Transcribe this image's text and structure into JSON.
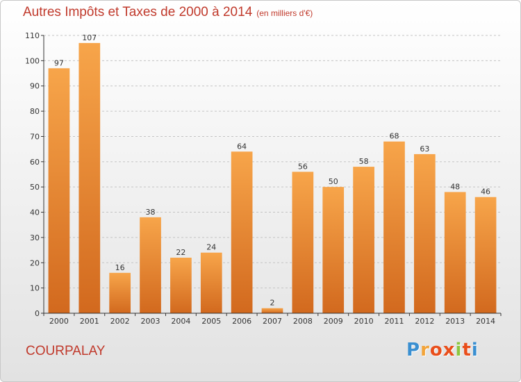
{
  "title": "Autres Impôts et Taxes de 2000 à 2014",
  "subtitle": "(en milliers d'€)",
  "city": "COURPALAY",
  "logo": {
    "letters": [
      "P",
      "r",
      "o",
      "x",
      "i",
      "t",
      "i"
    ],
    "colors": [
      "#3a8fd1",
      "#f2a43a",
      "#e94e1b",
      "#e94e1b",
      "#8cc63f",
      "#e94e1b",
      "#3a8fd1"
    ]
  },
  "colors": {
    "bar_top": "#f7a54a",
    "bar_bottom": "#d2691e",
    "accent": "#c0392b"
  },
  "chart_data": {
    "type": "bar",
    "title": "Autres Impôts et Taxes de 2000 à 2014",
    "subtitle": "(en milliers d'€)",
    "categories": [
      "2000",
      "2001",
      "2002",
      "2003",
      "2004",
      "2005",
      "2006",
      "2007",
      "2008",
      "2009",
      "2010",
      "2011",
      "2012",
      "2013",
      "2014"
    ],
    "values": [
      97,
      107,
      16,
      38,
      22,
      24,
      64,
      2,
      56,
      50,
      58,
      68,
      63,
      48,
      46
    ],
    "value_labels": [
      "97",
      "107",
      "16",
      "38",
      "22",
      "24",
      "64",
      "2",
      "56",
      "50",
      "58",
      "68",
      "63",
      "48",
      "46"
    ],
    "ylim": [
      0,
      110
    ],
    "yticks": [
      0,
      10,
      20,
      30,
      40,
      50,
      60,
      70,
      80,
      90,
      100,
      110
    ],
    "ytick_labels": [
      "0",
      "10",
      "20",
      "30",
      "40",
      "50",
      "60",
      "70",
      "80",
      "90",
      "100",
      "110"
    ],
    "grid": true,
    "xlabel": "",
    "ylabel": ""
  }
}
